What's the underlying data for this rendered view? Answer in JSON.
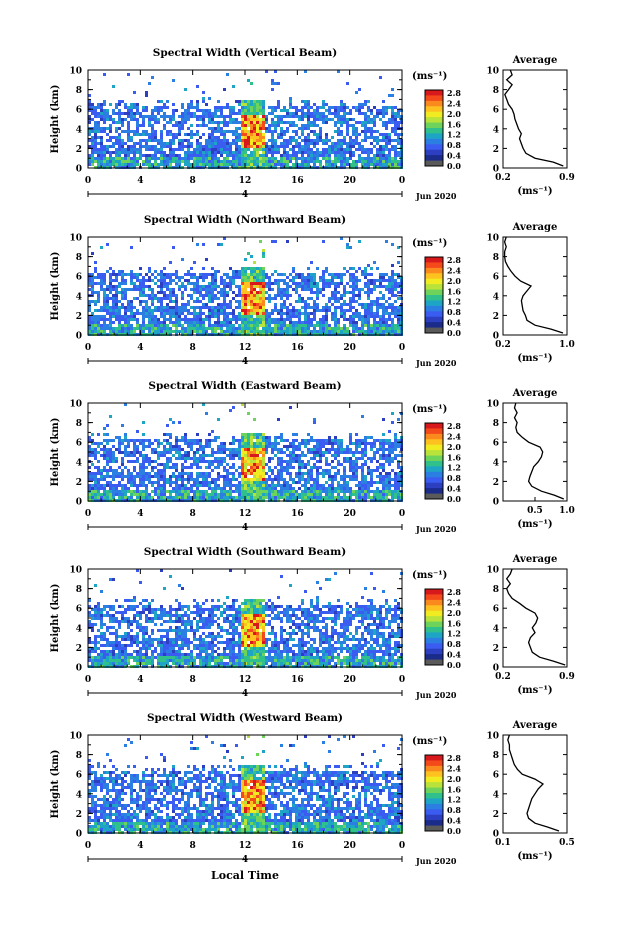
{
  "x_axis_title": "Local Time",
  "month_label": "Jun 2020",
  "day_label": "4",
  "height_label": "Height (km)",
  "unit_label": "(ms⁻¹)",
  "colorbar_ticks": [
    "2.8",
    "2.4",
    "2.0",
    "1.6",
    "1.2",
    "0.8",
    "0.4",
    "0.0"
  ],
  "colorbar_colors": [
    "#d7191c",
    "#f44a1b",
    "#fb8a1e",
    "#fdc21f",
    "#f1ec22",
    "#b9e33a",
    "#6dd35a",
    "#2fc08c",
    "#1ea5c6",
    "#2b7fe2",
    "#3a5cf0",
    "#2b3fc0",
    "#1a2b8a",
    "#5a5a5a"
  ],
  "chart_data": [
    {
      "type": "heatmap",
      "title": "Spectral Width (Vertical Beam)",
      "xlabel": "Local Time",
      "ylabel": "Height (km)",
      "xlim": [
        0,
        24
      ],
      "ylim": [
        0,
        10
      ],
      "x_ticks": [
        "0",
        "4",
        "8",
        "12",
        "16",
        "20",
        "0"
      ],
      "y_ticks": [
        "0",
        "2",
        "4",
        "6",
        "8",
        "10"
      ],
      "profile": {
        "title": "Average",
        "xlabel": "(ms⁻¹)",
        "x_ticks": [
          "0.2",
          "0.9"
        ],
        "xlim": [
          0.2,
          0.9
        ],
        "y_ticks": [
          "0",
          "2",
          "4",
          "6",
          "8",
          "10"
        ],
        "points": [
          [
            0.86,
            0.2
          ],
          [
            0.75,
            0.6
          ],
          [
            0.55,
            1.0
          ],
          [
            0.45,
            1.5
          ],
          [
            0.42,
            2.0
          ],
          [
            0.4,
            2.5
          ],
          [
            0.38,
            3.0
          ],
          [
            0.4,
            3.5
          ],
          [
            0.37,
            4.0
          ],
          [
            0.35,
            4.5
          ],
          [
            0.33,
            5.0
          ],
          [
            0.32,
            5.5
          ],
          [
            0.3,
            6.0
          ],
          [
            0.26,
            6.5
          ],
          [
            0.24,
            7.0
          ],
          [
            0.22,
            7.5
          ],
          [
            0.26,
            8.0
          ],
          [
            0.3,
            8.5
          ],
          [
            0.24,
            9.0
          ],
          [
            0.3,
            9.5
          ],
          [
            0.28,
            10.0
          ]
        ]
      }
    },
    {
      "type": "heatmap",
      "title": "Spectral Width (Northward Beam)",
      "xlabel": "Local Time",
      "ylabel": "Height (km)",
      "xlim": [
        0,
        24
      ],
      "ylim": [
        0,
        10
      ],
      "x_ticks": [
        "0",
        "4",
        "8",
        "12",
        "16",
        "20",
        "0"
      ],
      "y_ticks": [
        "0",
        "2",
        "4",
        "6",
        "8",
        "10"
      ],
      "profile": {
        "title": "Average",
        "xlabel": "(ms⁻¹)",
        "x_ticks": [
          "0.2",
          "1.0"
        ],
        "xlim": [
          0.2,
          1.0
        ],
        "y_ticks": [
          "0",
          "2",
          "4",
          "6",
          "8",
          "10"
        ],
        "points": [
          [
            0.95,
            0.2
          ],
          [
            0.8,
            0.6
          ],
          [
            0.6,
            1.0
          ],
          [
            0.5,
            1.5
          ],
          [
            0.48,
            2.0
          ],
          [
            0.45,
            2.5
          ],
          [
            0.44,
            3.0
          ],
          [
            0.43,
            3.5
          ],
          [
            0.45,
            4.0
          ],
          [
            0.5,
            4.5
          ],
          [
            0.55,
            5.0
          ],
          [
            0.42,
            5.5
          ],
          [
            0.35,
            6.0
          ],
          [
            0.3,
            6.5
          ],
          [
            0.26,
            7.0
          ],
          [
            0.23,
            7.5
          ],
          [
            0.22,
            8.0
          ],
          [
            0.22,
            8.5
          ],
          [
            0.24,
            9.0
          ],
          [
            0.22,
            9.5
          ],
          [
            0.24,
            10.0
          ]
        ]
      }
    },
    {
      "type": "heatmap",
      "title": "Spectral Width (Eastward Beam)",
      "xlabel": "Local Time",
      "ylabel": "Height (km)",
      "xlim": [
        0,
        24
      ],
      "ylim": [
        0,
        10
      ],
      "x_ticks": [
        "0",
        "4",
        "8",
        "12",
        "16",
        "20",
        "0"
      ],
      "y_ticks": [
        "0",
        "2",
        "4",
        "6",
        "8",
        "10"
      ],
      "profile": {
        "title": "Average",
        "xlabel": "(ms⁻¹)",
        "x_ticks": [
          "0.5",
          "1.0"
        ],
        "xlim": [
          0.0,
          1.0
        ],
        "y_ticks": [
          "0",
          "2",
          "4",
          "6",
          "8",
          "10"
        ],
        "points": [
          [
            0.95,
            0.2
          ],
          [
            0.8,
            0.6
          ],
          [
            0.6,
            1.0
          ],
          [
            0.45,
            1.5
          ],
          [
            0.4,
            2.0
          ],
          [
            0.42,
            2.5
          ],
          [
            0.45,
            3.0
          ],
          [
            0.48,
            3.5
          ],
          [
            0.55,
            4.0
          ],
          [
            0.6,
            4.5
          ],
          [
            0.62,
            5.0
          ],
          [
            0.58,
            5.5
          ],
          [
            0.4,
            6.0
          ],
          [
            0.3,
            6.5
          ],
          [
            0.22,
            7.0
          ],
          [
            0.2,
            7.5
          ],
          [
            0.22,
            8.0
          ],
          [
            0.18,
            8.5
          ],
          [
            0.22,
            9.0
          ],
          [
            0.18,
            9.5
          ],
          [
            0.2,
            10.0
          ]
        ]
      }
    },
    {
      "type": "heatmap",
      "title": "Spectral Width (Southward Beam)",
      "xlabel": "Local Time",
      "ylabel": "Height (km)",
      "xlim": [
        0,
        24
      ],
      "ylim": [
        0,
        10
      ],
      "x_ticks": [
        "0",
        "4",
        "8",
        "12",
        "16",
        "20",
        "0"
      ],
      "y_ticks": [
        "0",
        "2",
        "4",
        "6",
        "8",
        "10"
      ],
      "profile": {
        "title": "Average",
        "xlabel": "(ms⁻¹)",
        "x_ticks": [
          "0.2",
          "0.9"
        ],
        "xlim": [
          0.2,
          0.9
        ],
        "y_ticks": [
          "0",
          "2",
          "4",
          "6",
          "8",
          "10"
        ],
        "points": [
          [
            0.88,
            0.2
          ],
          [
            0.75,
            0.6
          ],
          [
            0.6,
            1.0
          ],
          [
            0.52,
            1.5
          ],
          [
            0.5,
            2.0
          ],
          [
            0.48,
            2.5
          ],
          [
            0.5,
            3.0
          ],
          [
            0.55,
            3.5
          ],
          [
            0.52,
            4.0
          ],
          [
            0.56,
            4.5
          ],
          [
            0.58,
            5.0
          ],
          [
            0.55,
            5.5
          ],
          [
            0.45,
            6.0
          ],
          [
            0.38,
            6.5
          ],
          [
            0.3,
            7.0
          ],
          [
            0.26,
            7.5
          ],
          [
            0.24,
            8.0
          ],
          [
            0.28,
            8.5
          ],
          [
            0.24,
            9.0
          ],
          [
            0.28,
            9.5
          ],
          [
            0.3,
            10.0
          ]
        ]
      }
    },
    {
      "type": "heatmap",
      "title": "Spectral Width (Westward Beam)",
      "xlabel": "Local Time",
      "ylabel": "Height (km)",
      "xlim": [
        0,
        24
      ],
      "ylim": [
        0,
        10
      ],
      "x_ticks": [
        "0",
        "4",
        "8",
        "12",
        "16",
        "20",
        "0"
      ],
      "y_ticks": [
        "0",
        "2",
        "4",
        "6",
        "8",
        "10"
      ],
      "profile": {
        "title": "Average",
        "xlabel": "(ms⁻¹)",
        "x_ticks": [
          "0.1",
          "0.5"
        ],
        "xlim": [
          0.1,
          0.5
        ],
        "y_ticks": [
          "0",
          "2",
          "4",
          "6",
          "8",
          "10"
        ],
        "points": [
          [
            0.45,
            0.2
          ],
          [
            0.38,
            0.6
          ],
          [
            0.3,
            1.0
          ],
          [
            0.26,
            1.5
          ],
          [
            0.25,
            2.0
          ],
          [
            0.26,
            2.5
          ],
          [
            0.27,
            3.0
          ],
          [
            0.28,
            3.5
          ],
          [
            0.3,
            4.0
          ],
          [
            0.32,
            4.5
          ],
          [
            0.35,
            5.0
          ],
          [
            0.3,
            5.5
          ],
          [
            0.22,
            6.0
          ],
          [
            0.19,
            6.5
          ],
          [
            0.17,
            7.0
          ],
          [
            0.16,
            7.5
          ],
          [
            0.15,
            8.0
          ],
          [
            0.14,
            8.5
          ],
          [
            0.14,
            9.0
          ],
          [
            0.13,
            9.5
          ],
          [
            0.14,
            10.0
          ]
        ]
      }
    }
  ]
}
